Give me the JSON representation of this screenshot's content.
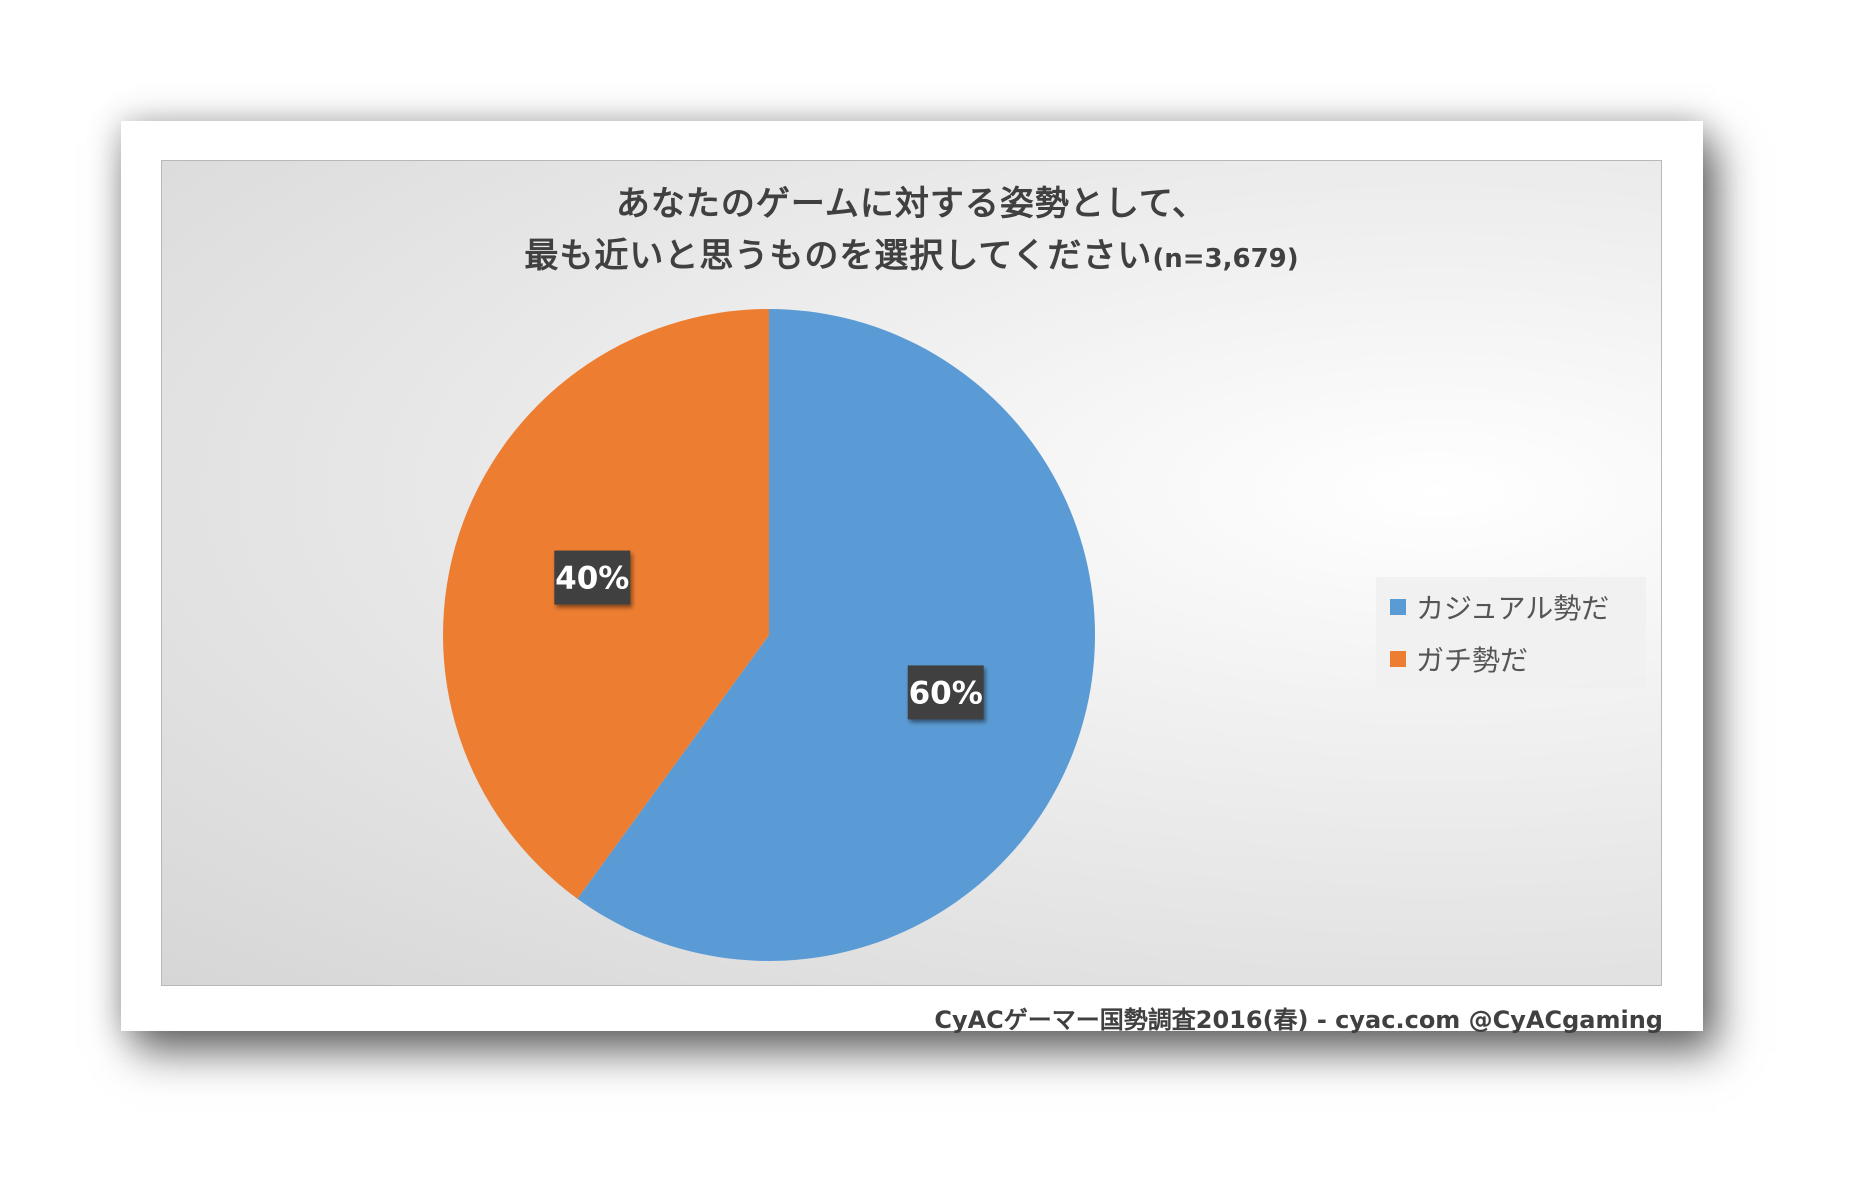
{
  "chart_data": {
    "type": "pie",
    "title_line1": "あなたのゲームに対する姿勢として、",
    "title_line2": "最も近いと思うものを選択してください",
    "title_suffix": "(n=3,679)",
    "slices": [
      {
        "label": "カジュアル勢だ",
        "value": 60,
        "display": "60%",
        "color": "#5b9bd5"
      },
      {
        "label": "ガチ勢だ",
        "value": 40,
        "display": "40%",
        "color": "#ed7d31"
      }
    ],
    "legend_position": "right"
  },
  "footer": "CyACゲーマー国勢調査2016(春) - cyac.com @CyACgaming"
}
